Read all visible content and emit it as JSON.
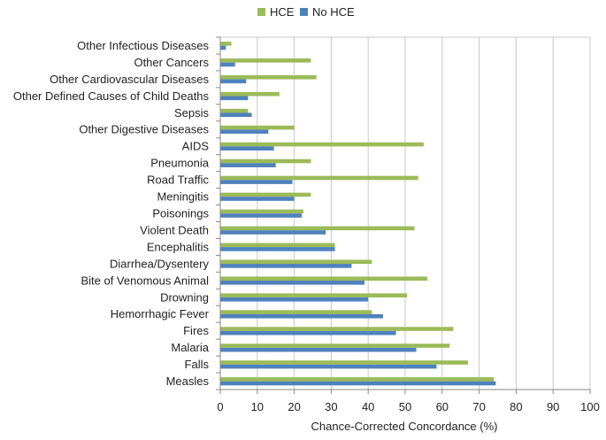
{
  "chart_data": {
    "type": "bar",
    "orientation": "horizontal",
    "title": "",
    "xlabel": "Chance-Corrected Concordance (%)",
    "ylabel": "",
    "xlim": [
      0,
      100
    ],
    "xticks": [
      0,
      10,
      20,
      30,
      40,
      50,
      60,
      70,
      80,
      90,
      100
    ],
    "grid": "vertical",
    "legend_position": "top",
    "categories": [
      "Other Infectious Diseases",
      "Other Cancers",
      "Other Cardiovascular Diseases",
      "Other Defined Causes of Child Deaths",
      "Sepsis",
      "Other Digestive Diseases",
      "AIDS",
      "Pneumonia",
      "Road Traffic",
      "Meningitis",
      "Poisonings",
      "Violent Death",
      "Encephalitis",
      "Diarrhea/Dysentery",
      "Bite of Venomous Animal",
      "Drowning",
      "Hemorrhagic Fever",
      "Fires",
      "Malaria",
      "Falls",
      "Measles"
    ],
    "series": [
      {
        "name": "HCE",
        "color": "#9bbb59",
        "values": [
          3,
          24.5,
          26,
          16,
          7.5,
          20,
          55,
          24.5,
          53.5,
          24.5,
          22.5,
          52.5,
          31,
          41,
          56,
          50.5,
          41,
          63,
          62,
          67,
          74
        ]
      },
      {
        "name": "No HCE",
        "color": "#4f81bd",
        "values": [
          1.5,
          4,
          7,
          7.5,
          8.5,
          13,
          14.5,
          15,
          19.5,
          20,
          22,
          28.5,
          31,
          35.5,
          39,
          40,
          44,
          47.5,
          53,
          58.5,
          74.5
        ]
      }
    ]
  }
}
